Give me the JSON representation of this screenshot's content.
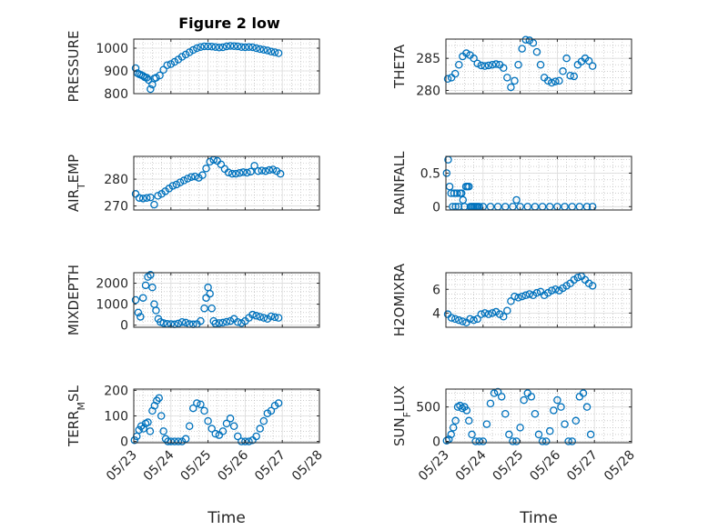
{
  "title": "Figure 2 low",
  "colors": {
    "marker": "#0072BD",
    "axis": "#262626",
    "grid": "#b0b0b0"
  },
  "chart_data": [
    {
      "type": "scatter",
      "ylabel": "PRESSURE",
      "yticks": [
        "800",
        "900",
        "1000"
      ],
      "ylim": [
        800,
        1040
      ],
      "x_days": [
        0.05,
        0.1,
        0.15,
        0.2,
        0.25,
        0.3,
        0.35,
        0.4,
        0.45,
        0.5,
        0.55,
        0.6,
        0.7,
        0.8,
        0.9,
        1.0,
        1.1,
        1.2,
        1.3,
        1.4,
        1.5,
        1.6,
        1.7,
        1.8,
        1.9,
        2.0,
        2.1,
        2.2,
        2.3,
        2.4,
        2.5,
        2.6,
        2.7,
        2.8,
        2.9,
        3.0,
        3.1,
        3.2,
        3.3,
        3.4,
        3.5,
        3.6,
        3.7,
        3.8,
        3.9
      ],
      "y": [
        912,
        890,
        885,
        882,
        878,
        872,
        870,
        860,
        820,
        840,
        866,
        870,
        880,
        905,
        925,
        930,
        940,
        950,
        962,
        972,
        982,
        992,
        1000,
        1005,
        1008,
        1008,
        1007,
        1005,
        1003,
        1004,
        1008,
        1010,
        1009,
        1008,
        1005,
        1004,
        1005,
        1004,
        1000,
        996,
        993,
        990,
        985,
        982,
        978
      ]
    },
    {
      "type": "scatter",
      "ylabel": "THETA",
      "yticks": [
        "280",
        "285"
      ],
      "ylim": [
        279.5,
        288
      ],
      "x_days": [
        0.05,
        0.15,
        0.25,
        0.35,
        0.45,
        0.55,
        0.65,
        0.75,
        0.85,
        0.95,
        1.05,
        1.15,
        1.25,
        1.35,
        1.45,
        1.55,
        1.65,
        1.75,
        1.85,
        1.95,
        2.05,
        2.15,
        2.25,
        2.35,
        2.45,
        2.55,
        2.65,
        2.75,
        2.85,
        2.95,
        3.05,
        3.15,
        3.25,
        3.35,
        3.45,
        3.55,
        3.65,
        3.75,
        3.85,
        3.95
      ],
      "y": [
        281.8,
        282,
        282.6,
        284,
        285.3,
        285.8,
        285.5,
        285,
        284.2,
        283.9,
        283.8,
        283.9,
        284,
        284.1,
        284,
        283.5,
        282,
        280.5,
        281.5,
        284,
        286.5,
        287.9,
        287.8,
        287.4,
        286,
        284,
        282,
        281.5,
        281.2,
        281.4,
        281.5,
        283,
        285,
        282.3,
        282.2,
        284,
        284.5,
        285,
        284.6,
        283.8
      ]
    },
    {
      "type": "scatter",
      "ylabel": "AIR_TEMP",
      "yticks": [
        "270",
        "280"
      ],
      "ylim": [
        268.5,
        288.5
      ],
      "x_days": [
        0.05,
        0.15,
        0.25,
        0.35,
        0.45,
        0.55,
        0.65,
        0.75,
        0.85,
        0.95,
        1.05,
        1.15,
        1.25,
        1.35,
        1.45,
        1.55,
        1.65,
        1.75,
        1.85,
        1.95,
        2.05,
        2.15,
        2.25,
        2.35,
        2.45,
        2.55,
        2.65,
        2.75,
        2.85,
        2.95,
        3.05,
        3.15,
        3.25,
        3.35,
        3.45,
        3.55,
        3.65,
        3.75,
        3.85,
        3.95
      ],
      "y": [
        274.5,
        273,
        272.8,
        273,
        273.2,
        270.5,
        273.8,
        274.5,
        275.5,
        276.5,
        277.5,
        278,
        278.8,
        279.5,
        280.2,
        280.8,
        281,
        280.5,
        281.5,
        284,
        286.5,
        287.2,
        286.8,
        285.5,
        283.8,
        282.5,
        282,
        282,
        282.3,
        282.6,
        282.4,
        282.8,
        285,
        283,
        283.2,
        283,
        283.4,
        283.6,
        283,
        282
      ]
    },
    {
      "type": "scatter",
      "ylabel": "RAINFALL",
      "yticks": [
        "0",
        "0.5"
      ],
      "ylim": [
        -0.05,
        0.75
      ],
      "x_days": [
        0.02,
        0.06,
        0.1,
        0.14,
        0.18,
        0.22,
        0.26,
        0.3,
        0.34,
        0.38,
        0.42,
        0.46,
        0.5,
        0.54,
        0.58,
        0.62,
        0.66,
        0.7,
        0.74,
        0.78,
        0.82,
        0.86,
        0.9,
        1.0,
        1.2,
        1.4,
        1.6,
        1.8,
        1.9,
        2.0,
        2.2,
        2.4,
        2.6,
        2.8,
        3.0,
        3.2,
        3.4,
        3.6,
        3.8,
        3.95
      ],
      "y": [
        0.5,
        0.7,
        0.3,
        0.2,
        0,
        0.2,
        0,
        0.2,
        0,
        0.2,
        0.2,
        0.1,
        0,
        0.3,
        0.3,
        0.3,
        0,
        0,
        0,
        0,
        0,
        0,
        0,
        0,
        0,
        0,
        0,
        0,
        0.1,
        0,
        0,
        0,
        0,
        0,
        0,
        0,
        0,
        0,
        0,
        0
      ]
    },
    {
      "type": "scatter",
      "ylabel": "MIXDEPTH",
      "yticks": [
        "0",
        "1000",
        "2000"
      ],
      "ylim": [
        -100,
        2500
      ],
      "x_days": [
        0.05,
        0.12,
        0.18,
        0.25,
        0.32,
        0.38,
        0.45,
        0.5,
        0.55,
        0.6,
        0.66,
        0.72,
        0.8,
        0.9,
        1.0,
        1.1,
        1.2,
        1.3,
        1.4,
        1.5,
        1.6,
        1.7,
        1.8,
        1.9,
        1.95,
        2.0,
        2.05,
        2.1,
        2.15,
        2.2,
        2.3,
        2.4,
        2.5,
        2.6,
        2.7,
        2.8,
        2.9,
        3.0,
        3.1,
        3.2,
        3.3,
        3.4,
        3.5,
        3.6,
        3.7,
        3.8,
        3.9
      ],
      "y": [
        1200,
        600,
        400,
        1300,
        1900,
        2300,
        2400,
        1800,
        1000,
        700,
        300,
        150,
        100,
        60,
        50,
        40,
        80,
        150,
        120,
        50,
        40,
        50,
        200,
        800,
        1300,
        1800,
        1500,
        800,
        200,
        80,
        100,
        120,
        160,
        200,
        300,
        150,
        100,
        200,
        350,
        500,
        450,
        400,
        350,
        300,
        420,
        380,
        350
      ]
    },
    {
      "type": "scatter",
      "ylabel": "H2OMIXRA",
      "yticks": [
        "4",
        "6"
      ],
      "ylim": [
        2.8,
        7.4
      ],
      "x_days": [
        0.05,
        0.15,
        0.25,
        0.35,
        0.45,
        0.55,
        0.65,
        0.75,
        0.85,
        0.95,
        1.05,
        1.15,
        1.25,
        1.35,
        1.45,
        1.55,
        1.65,
        1.75,
        1.85,
        1.95,
        2.05,
        2.15,
        2.25,
        2.35,
        2.45,
        2.55,
        2.65,
        2.75,
        2.85,
        2.95,
        3.05,
        3.15,
        3.25,
        3.35,
        3.45,
        3.55,
        3.65,
        3.75,
        3.85,
        3.95
      ],
      "y": [
        3.9,
        3.6,
        3.5,
        3.4,
        3.3,
        3.2,
        3.5,
        3.4,
        3.5,
        3.9,
        4.0,
        3.9,
        4.0,
        4.1,
        3.9,
        3.7,
        4.2,
        5.0,
        5.4,
        5.3,
        5.4,
        5.5,
        5.6,
        5.5,
        5.7,
        5.8,
        5.5,
        5.7,
        5.9,
        6.0,
        5.9,
        6.1,
        6.3,
        6.5,
        6.8,
        7.0,
        7.1,
        6.8,
        6.5,
        6.3
      ]
    },
    {
      "type": "scatter",
      "ylabel": "TERR_MSL",
      "yticks": [
        "0",
        "100",
        "200"
      ],
      "ylim": [
        -5,
        205
      ],
      "x_days": [
        0.02,
        0.08,
        0.14,
        0.2,
        0.26,
        0.32,
        0.38,
        0.44,
        0.5,
        0.56,
        0.62,
        0.68,
        0.74,
        0.8,
        0.86,
        0.92,
        1.0,
        1.1,
        1.2,
        1.3,
        1.4,
        1.5,
        1.6,
        1.7,
        1.8,
        1.9,
        2.0,
        2.1,
        2.2,
        2.3,
        2.4,
        2.5,
        2.6,
        2.7,
        2.8,
        2.9,
        3.0,
        3.1,
        3.2,
        3.3,
        3.4,
        3.5,
        3.6,
        3.7,
        3.8,
        3.9
      ],
      "y": [
        5,
        20,
        45,
        60,
        50,
        70,
        75,
        40,
        120,
        140,
        160,
        170,
        100,
        40,
        10,
        0,
        0,
        0,
        0,
        0,
        10,
        60,
        130,
        150,
        145,
        120,
        80,
        50,
        30,
        25,
        40,
        70,
        90,
        60,
        20,
        0,
        0,
        0,
        5,
        20,
        50,
        80,
        110,
        120,
        140,
        150
      ]
    },
    {
      "type": "scatter",
      "ylabel": "SUN_FLUX",
      "yticks": [
        "0",
        "500"
      ],
      "ylim": [
        -20,
        760
      ],
      "x_days": [
        0.02,
        0.08,
        0.14,
        0.2,
        0.26,
        0.32,
        0.38,
        0.44,
        0.5,
        0.56,
        0.62,
        0.7,
        0.8,
        0.9,
        1.0,
        1.1,
        1.2,
        1.3,
        1.4,
        1.5,
        1.6,
        1.7,
        1.8,
        1.9,
        2.0,
        2.1,
        2.2,
        2.3,
        2.4,
        2.5,
        2.6,
        2.7,
        2.8,
        2.9,
        3.0,
        3.1,
        3.2,
        3.3,
        3.4,
        3.5,
        3.6,
        3.7,
        3.8,
        3.9
      ],
      "y": [
        10,
        30,
        100,
        200,
        300,
        500,
        520,
        480,
        500,
        450,
        300,
        100,
        0,
        0,
        0,
        250,
        550,
        700,
        720,
        650,
        400,
        100,
        0,
        0,
        200,
        600,
        700,
        650,
        400,
        100,
        0,
        0,
        150,
        450,
        600,
        500,
        250,
        0,
        0,
        300,
        650,
        700,
        500,
        100
      ]
    }
  ],
  "x_axis": {
    "label": "Time",
    "tick_labels": [
      "05/23",
      "05/24",
      "05/25",
      "05/26",
      "05/27",
      "05/28"
    ]
  }
}
